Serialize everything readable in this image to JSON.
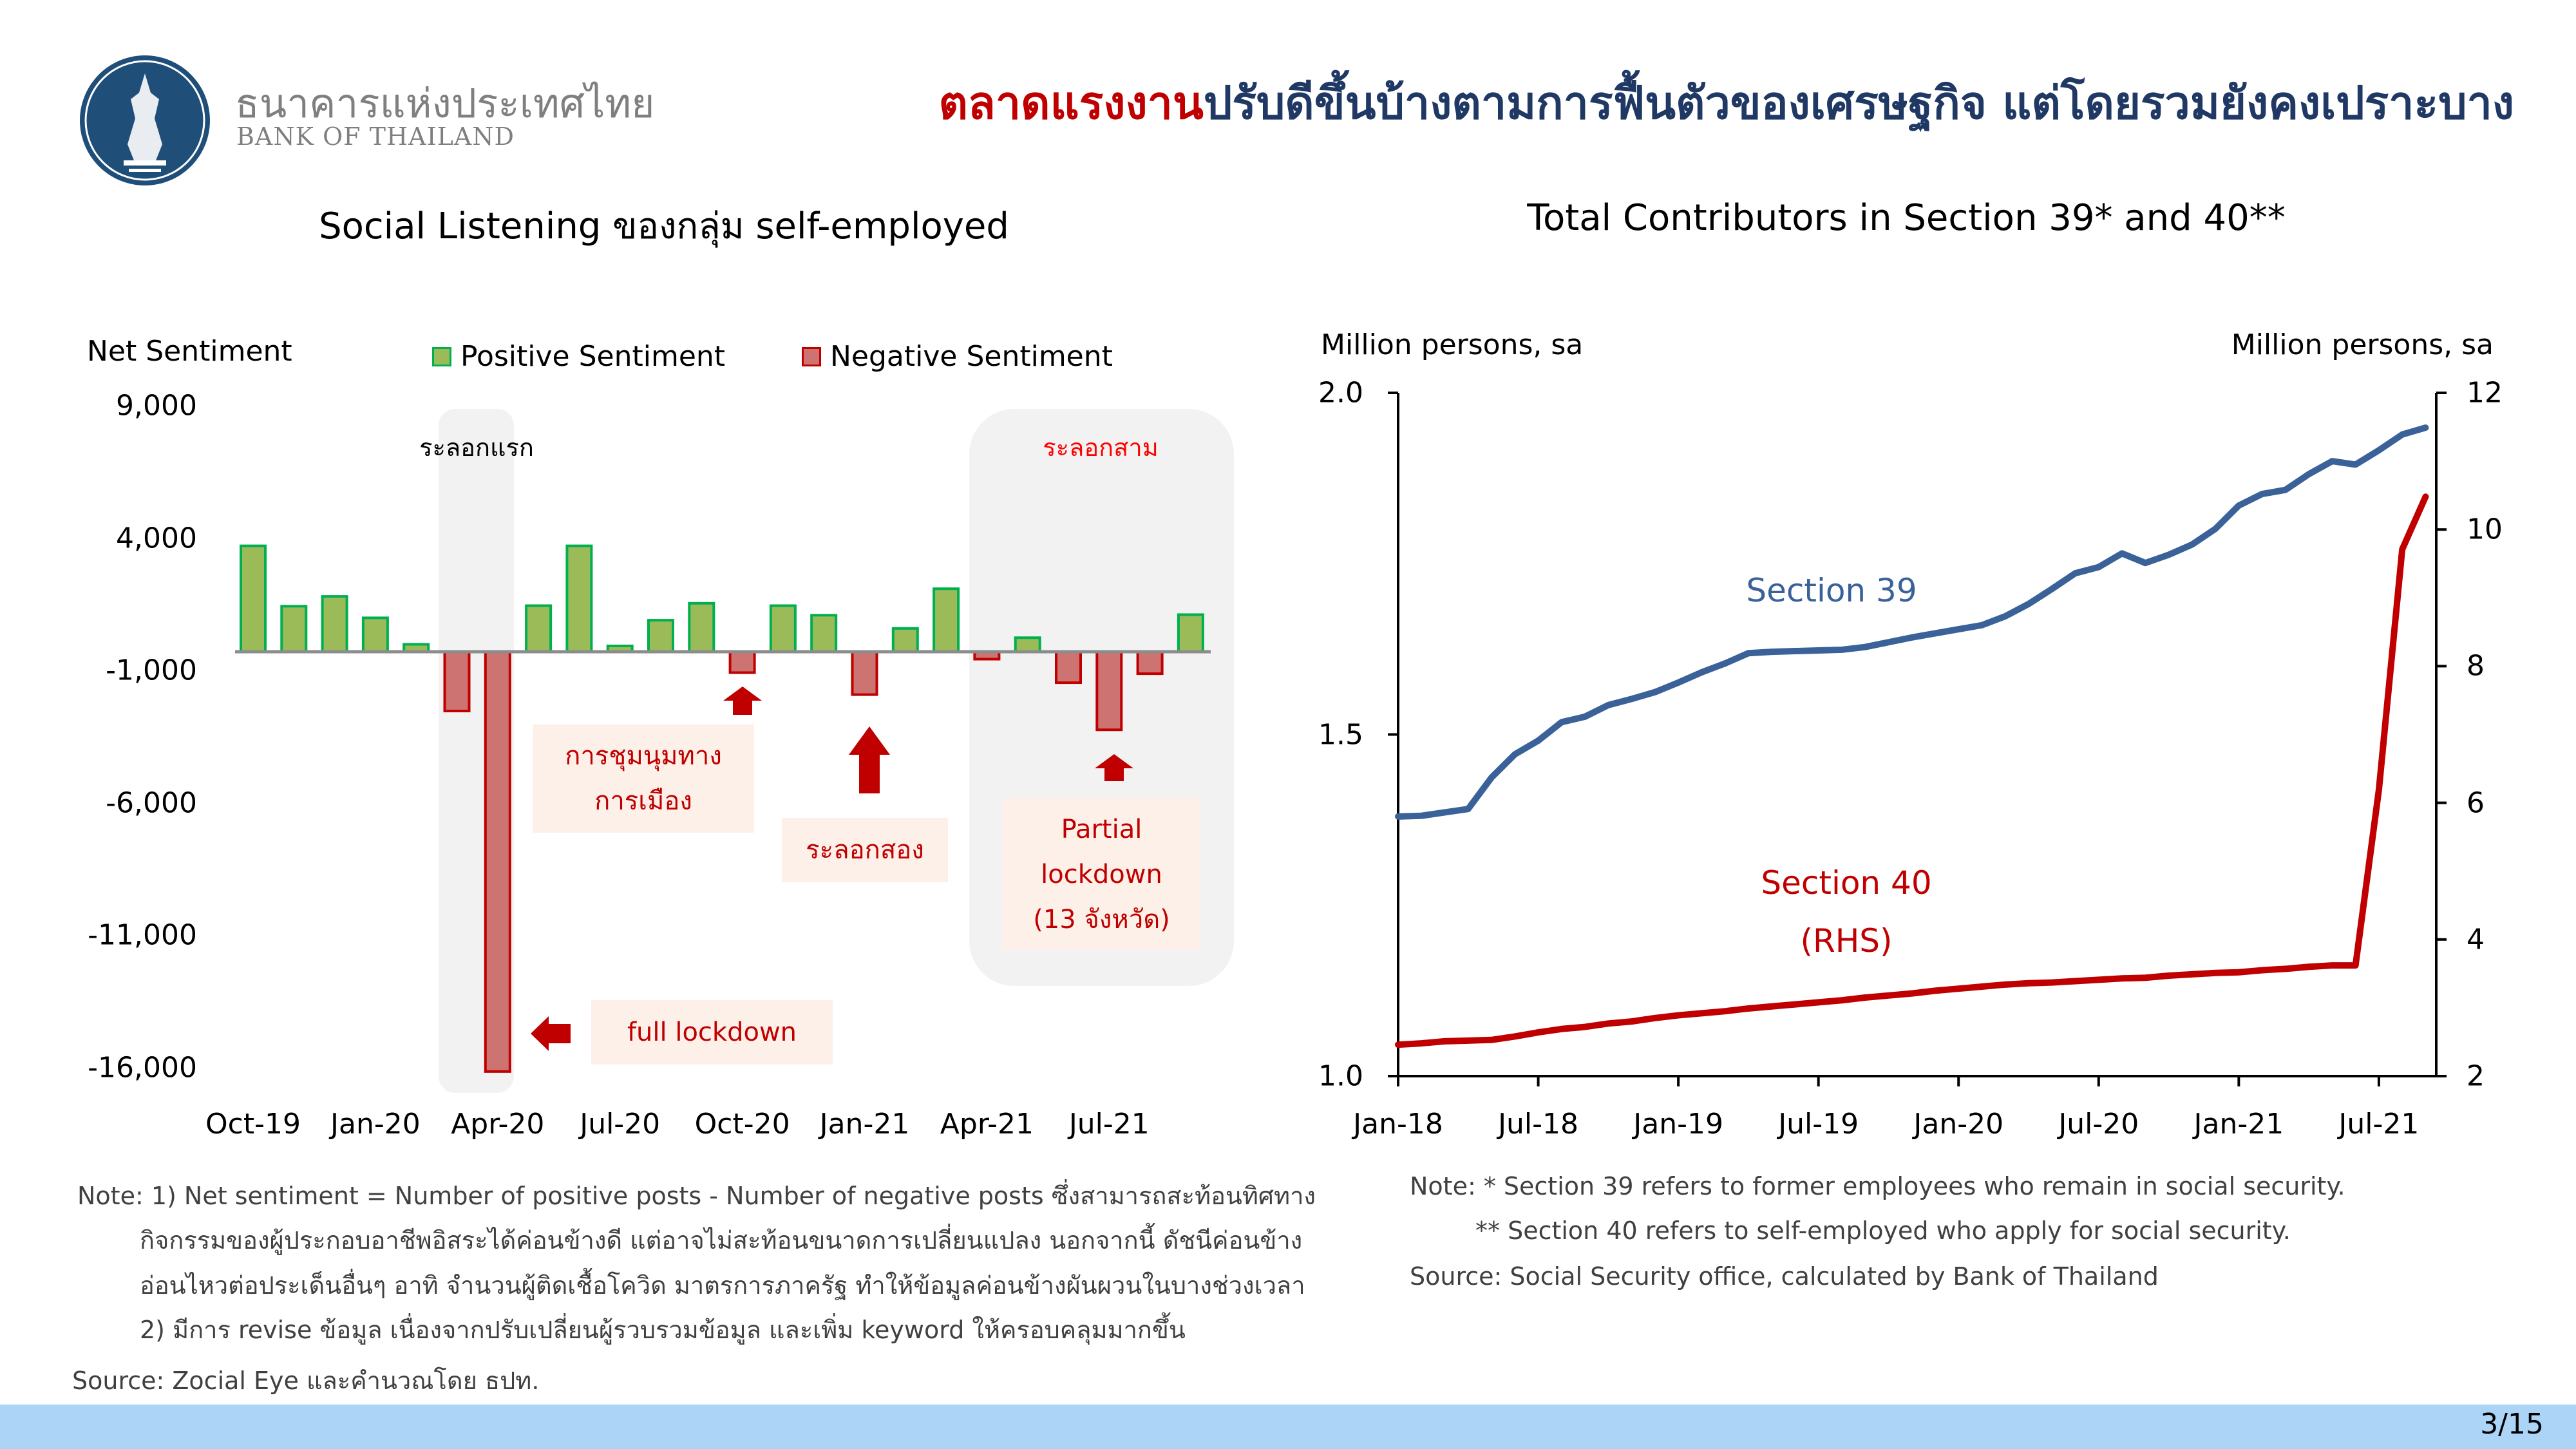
{
  "header": {
    "bank_name_th": "ธนาคารแห่งประเทศไทย",
    "bank_name_en": "BANK OF THAILAND",
    "title_highlight": "ตลาดแรงงาน",
    "title_rest": "ปรับดีขึ้นบ้างตามการฟื้นตัวของเศรษฐกิจ แต่โดยรวมยังคงเปราะบาง",
    "logo_icon": "bank-of-thailand-seal"
  },
  "colors": {
    "positive": "#9bbb59",
    "positive_border": "#00b050",
    "negative": "#cd7371",
    "negative_border": "#c00000",
    "accent_red": "#c00000",
    "section39": "#3a6299",
    "section40": "#c00000",
    "title_blue": "#1f3864",
    "footer": "#acd4f7"
  },
  "chart_data": [
    {
      "type": "bar",
      "title": "Social Listening ของกลุ่ม self-employed",
      "ylabel": "Net Sentiment",
      "ylim": [
        -16000,
        9000
      ],
      "yticks": [
        9000,
        4000,
        -1000,
        -6000,
        -11000,
        -16000
      ],
      "ytick_labels": [
        "9,000",
        "4,000",
        "-1,000",
        "-6,000",
        "-11,000",
        "-16,000"
      ],
      "legend": [
        "Positive Sentiment",
        "Negative Sentiment"
      ],
      "legend_position": "top",
      "categories": [
        "Oct-19",
        "Nov-19",
        "Dec-19",
        "Jan-20",
        "Feb-20",
        "Mar-20",
        "Apr-20",
        "May-20",
        "Jun-20",
        "Jul-20",
        "Aug-20",
        "Sep-20",
        "Oct-20",
        "Nov-20",
        "Dec-20",
        "Jan-21",
        "Feb-21",
        "Mar-21",
        "Apr-21",
        "May-21",
        "Jun-21",
        "Jul-21",
        "Aug-21",
        "Sep-21"
      ],
      "xtick_labels": [
        "Oct-19",
        "Jan-20",
        "Apr-20",
        "Jul-20",
        "Oct-20",
        "Jan-21",
        "Apr-21",
        "Jul-21"
      ],
      "values": [
        4000,
        1720,
        2090,
        1280,
        280,
        -2240,
        -15860,
        1740,
        4000,
        220,
        1190,
        1830,
        -790,
        1740,
        1380,
        -1620,
        880,
        2380,
        -280,
        530,
        -1170,
        -2950,
        -830,
        1400
      ],
      "shaded_periods": [
        {
          "label": "ระลอกแรก",
          "from": "Mar-20",
          "to": "Apr-20"
        },
        {
          "label": "ระลอกสาม",
          "from": "Apr-21",
          "to": "Sep-21"
        }
      ],
      "annotations": {
        "protest": [
          "การชุมนุมทาง",
          "การเมือง"
        ],
        "second_wave": "ระลอกสอง",
        "partial": [
          "Partial",
          "lockdown",
          "(13 จังหวัด)"
        ],
        "full_lockdown": "full lockdown"
      }
    },
    {
      "type": "line",
      "title": "Total Contributors in Section 39* and 40**",
      "ylabel_left": "Million persons, sa",
      "ylabel_right": "Million persons, sa",
      "ylim_left": [
        1.0,
        2.0
      ],
      "ylim_right": [
        2,
        12
      ],
      "yticks_left": [
        "2.0",
        "1.5",
        "1.0"
      ],
      "yticks_right": [
        "12",
        "10",
        "8",
        "6",
        "4",
        "2"
      ],
      "xtick_labels": [
        "Jan-18",
        "Jul-18",
        "Jan-19",
        "Jul-19",
        "Jan-20",
        "Jul-20",
        "Jan-21",
        "Jul-21"
      ],
      "x_start": "Jan-18",
      "x_end": "Sep-21",
      "series": [
        {
          "name": "Section 39",
          "axis": "left",
          "values": [
            1.38,
            1.381,
            1.386,
            1.391,
            1.437,
            1.471,
            1.491,
            1.518,
            1.526,
            1.543,
            1.552,
            1.562,
            1.576,
            1.591,
            1.604,
            1.619,
            1.621,
            1.622,
            1.623,
            1.624,
            1.628,
            1.635,
            1.642,
            1.648,
            1.654,
            1.66,
            1.673,
            1.691,
            1.713,
            1.736,
            1.745,
            1.765,
            1.751,
            1.763,
            1.778,
            1.801,
            1.835,
            1.852,
            1.858,
            1.881,
            1.9,
            1.895,
            1.916,
            1.939,
            1.949
          ]
        },
        {
          "name": "Section 40",
          "label_sub": "(RHS)",
          "axis": "right",
          "values": [
            2.46,
            2.48,
            2.51,
            2.52,
            2.53,
            2.58,
            2.64,
            2.69,
            2.72,
            2.77,
            2.8,
            2.85,
            2.89,
            2.92,
            2.95,
            2.99,
            3.02,
            3.05,
            3.08,
            3.11,
            3.15,
            3.18,
            3.21,
            3.25,
            3.28,
            3.31,
            3.34,
            3.36,
            3.37,
            3.39,
            3.41,
            3.43,
            3.44,
            3.47,
            3.49,
            3.51,
            3.52,
            3.55,
            3.57,
            3.6,
            3.62,
            3.62,
            6.19,
            9.71,
            10.48
          ]
        }
      ]
    }
  ],
  "notes_left": {
    "line1": "Note: 1) Net sentiment = Number of positive posts - Number of negative posts ซึ่งสามารถสะท้อนทิศทาง",
    "line2": "กิจกรรมของผู้ประกอบอาชีพอิสระได้ค่อนข้างดี แต่อาจไม่สะท้อนขนาดการเปลี่ยนแปลง นอกจากนี้ ดัชนีค่อนข้าง",
    "line3": "อ่อนไหวต่อประเด็นอื่นๆ อาทิ จำนวนผู้ติดเชื้อโควิด มาตรการภาครัฐ ทำให้ข้อมูลค่อนข้างผันผวนในบางช่วงเวลา",
    "line4": "2) มีการ revise ข้อมูล เนื่องจากปรับเปลี่ยนผู้รวบรวมข้อมูล และเพิ่ม keyword ให้ครอบคลุมมากขึ้น",
    "source": "Source: Zocial Eye และคำนวณโดย ธปท."
  },
  "notes_right": {
    "line1": "Note: * Section 39 refers to former employees who remain in social security.",
    "line2": "** Section 40 refers to self-employed who apply for social security.",
    "source": "Source: Social Security office, calculated by Bank of Thailand"
  },
  "footer": {
    "page": "3/15"
  }
}
